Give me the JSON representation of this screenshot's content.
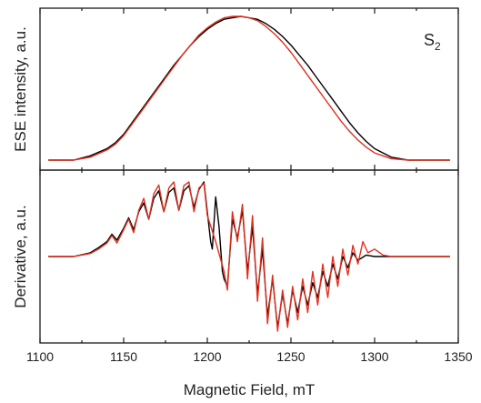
{
  "chart_data": [
    {
      "type": "line",
      "panel": "top",
      "title": "",
      "xlabel": "",
      "ylabel": "ESE intensity, a.u.",
      "xlim": [
        1100,
        1350
      ],
      "ylim": [
        0,
        1.0
      ],
      "grid": false,
      "annotation": {
        "text": "S",
        "subscript": "2"
      },
      "series": [
        {
          "color": "#000000",
          "x": [
            1105,
            1120,
            1130,
            1140,
            1145,
            1150,
            1155,
            1160,
            1165,
            1170,
            1175,
            1180,
            1185,
            1190,
            1195,
            1200,
            1205,
            1210,
            1215,
            1220,
            1225,
            1230,
            1235,
            1240,
            1245,
            1250,
            1255,
            1260,
            1265,
            1270,
            1275,
            1280,
            1285,
            1290,
            1295,
            1300,
            1305,
            1310,
            1320,
            1330,
            1345
          ],
          "y": [
            0.0,
            0.0,
            0.03,
            0.08,
            0.12,
            0.18,
            0.26,
            0.34,
            0.42,
            0.5,
            0.58,
            0.66,
            0.73,
            0.8,
            0.86,
            0.91,
            0.95,
            0.98,
            0.99,
            1.0,
            0.99,
            0.98,
            0.95,
            0.91,
            0.86,
            0.8,
            0.73,
            0.66,
            0.58,
            0.5,
            0.42,
            0.34,
            0.26,
            0.19,
            0.13,
            0.08,
            0.05,
            0.02,
            0.0,
            0.0,
            0.0
          ]
        },
        {
          "color": "#e03020",
          "x": [
            1105,
            1120,
            1130,
            1140,
            1145,
            1150,
            1155,
            1160,
            1165,
            1170,
            1175,
            1180,
            1185,
            1190,
            1195,
            1200,
            1205,
            1210,
            1215,
            1220,
            1225,
            1230,
            1235,
            1240,
            1245,
            1250,
            1255,
            1260,
            1265,
            1270,
            1275,
            1280,
            1285,
            1290,
            1295,
            1300,
            1305,
            1310,
            1320,
            1330,
            1345
          ],
          "y": [
            0.0,
            0.0,
            0.02,
            0.07,
            0.11,
            0.17,
            0.25,
            0.33,
            0.41,
            0.49,
            0.57,
            0.65,
            0.73,
            0.8,
            0.87,
            0.92,
            0.96,
            0.99,
            1.0,
            1.0,
            0.99,
            0.97,
            0.93,
            0.88,
            0.82,
            0.75,
            0.67,
            0.59,
            0.51,
            0.43,
            0.35,
            0.27,
            0.2,
            0.14,
            0.09,
            0.05,
            0.03,
            0.01,
            0.0,
            0.0,
            0.0
          ]
        }
      ]
    },
    {
      "type": "line",
      "panel": "bottom",
      "title": "",
      "xlabel": "Magnetic Field, mT",
      "ylabel": "Derivative, a.u.",
      "xlim": [
        1100,
        1350
      ],
      "xticks": [
        1100,
        1150,
        1200,
        1250,
        1300,
        1350
      ],
      "ylim": [
        -1.0,
        1.0
      ],
      "grid": false,
      "series": [
        {
          "color": "#000000",
          "x": [
            1105,
            1120,
            1130,
            1135,
            1140,
            1143,
            1146,
            1150,
            1153,
            1156,
            1159,
            1162,
            1165,
            1168,
            1171,
            1174,
            1177,
            1180,
            1183,
            1186,
            1189,
            1192,
            1195,
            1198,
            1200,
            1202,
            1203,
            1205,
            1207,
            1209,
            1210,
            1212,
            1215,
            1218,
            1221,
            1224,
            1227,
            1230,
            1233,
            1236,
            1239,
            1242,
            1245,
            1248,
            1251,
            1254,
            1257,
            1260,
            1263,
            1266,
            1269,
            1272,
            1275,
            1278,
            1281,
            1284,
            1287,
            1290,
            1295,
            1300,
            1310,
            1320,
            1330,
            1345
          ],
          "y": [
            0.0,
            0.0,
            0.05,
            0.12,
            0.2,
            0.3,
            0.22,
            0.38,
            0.52,
            0.36,
            0.6,
            0.72,
            0.5,
            0.78,
            0.88,
            0.6,
            0.86,
            0.92,
            0.62,
            0.88,
            0.95,
            0.66,
            0.9,
            1.0,
            0.6,
            0.2,
            0.1,
            0.8,
            0.4,
            -0.2,
            -0.3,
            -0.4,
            0.5,
            0.25,
            0.62,
            -0.2,
            0.4,
            -0.5,
            0.1,
            -0.8,
            -0.3,
            -0.95,
            -0.5,
            -0.9,
            -0.45,
            -0.75,
            -0.4,
            -0.65,
            -0.35,
            -0.55,
            -0.2,
            -0.4,
            -0.1,
            -0.3,
            0.0,
            -0.15,
            0.05,
            -0.05,
            0.02,
            0.0,
            0.0,
            0.0,
            0.0,
            0.0
          ]
        },
        {
          "color": "#e03020",
          "x": [
            1105,
            1120,
            1130,
            1135,
            1140,
            1143,
            1146,
            1150,
            1153,
            1156,
            1159,
            1162,
            1165,
            1168,
            1171,
            1174,
            1177,
            1180,
            1183,
            1186,
            1189,
            1192,
            1195,
            1198,
            1200,
            1205,
            1210,
            1212,
            1215,
            1218,
            1221,
            1224,
            1227,
            1230,
            1233,
            1236,
            1239,
            1242,
            1245,
            1248,
            1251,
            1254,
            1257,
            1260,
            1263,
            1266,
            1269,
            1272,
            1275,
            1278,
            1281,
            1284,
            1287,
            1290,
            1293,
            1296,
            1300,
            1305,
            1310,
            1320,
            1330,
            1345
          ],
          "y": [
            0.0,
            0.0,
            0.04,
            0.1,
            0.18,
            0.28,
            0.18,
            0.36,
            0.5,
            0.32,
            0.62,
            0.78,
            0.5,
            0.84,
            0.96,
            0.6,
            0.92,
            1.0,
            0.62,
            0.95,
            1.0,
            0.6,
            0.92,
            0.98,
            0.55,
            0.2,
            -0.2,
            -0.45,
            0.6,
            0.2,
            0.7,
            -0.3,
            0.55,
            -0.6,
            0.25,
            -0.9,
            -0.25,
            -1.0,
            -0.45,
            -0.95,
            -0.4,
            -0.85,
            -0.3,
            -0.75,
            -0.2,
            -0.65,
            -0.1,
            -0.55,
            0.0,
            -0.4,
            0.1,
            -0.25,
            0.15,
            -0.1,
            0.2,
            0.05,
            0.1,
            0.02,
            0.0,
            0.0,
            0.0,
            0.0
          ]
        }
      ]
    }
  ]
}
